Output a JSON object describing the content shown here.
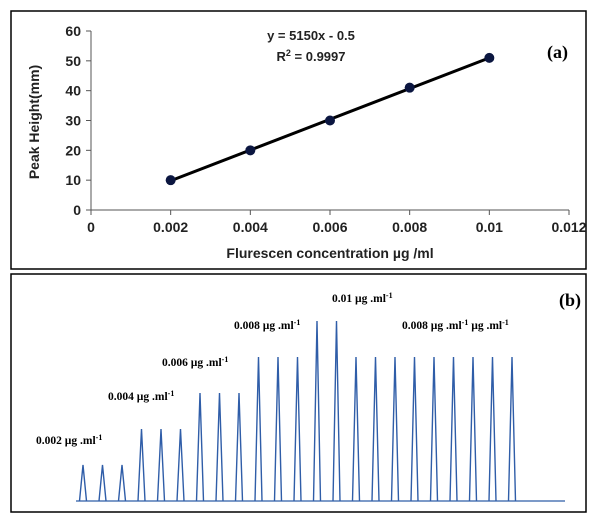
{
  "chart_data": [
    {
      "type": "scatter",
      "panel_label": "(a)",
      "xlabel": "Flurescen concentration µg /ml",
      "ylabel": "Peak Height(mm)",
      "xlim": [
        0,
        0.012
      ],
      "ylim": [
        0,
        60
      ],
      "x_ticks": [
        0,
        0.002,
        0.004,
        0.006,
        0.008,
        0.01,
        0.012
      ],
      "x_tick_labels": [
        "0",
        "0.002",
        "0.004",
        "0.006",
        "0.008",
        "0.01",
        "0.012"
      ],
      "y_ticks": [
        0,
        10,
        20,
        30,
        40,
        50,
        60
      ],
      "y_tick_labels": [
        "0",
        "10",
        "20",
        "30",
        "40",
        "50",
        "60"
      ],
      "x": [
        0.002,
        0.004,
        0.006,
        0.008,
        0.01
      ],
      "y": [
        10,
        20,
        30,
        41,
        51
      ],
      "trendline": {
        "slope": 5150,
        "intercept": -0.5
      },
      "equation": "y = 5150x - 0.5",
      "r_squared_label": "R",
      "r_squared_exp": "2",
      "r_squared_value": " = 0.9997",
      "grid": false,
      "marker_color": "#0b1640",
      "line_color": "#000000"
    },
    {
      "type": "line",
      "panel_label": "(b)",
      "unit_text": " µg .ml",
      "unit_sup": "-1",
      "line_color": "#2f5da8",
      "groups": [
        {
          "label": "0.002",
          "count": 3,
          "level": 0.002
        },
        {
          "label": "0.004",
          "count": 3,
          "level": 0.004
        },
        {
          "label": "0.006",
          "count": 3,
          "level": 0.006
        },
        {
          "label": "0.008",
          "count": 3,
          "level": 0.008
        },
        {
          "label": "0.01",
          "count": 2,
          "level": 0.01
        },
        {
          "label": "0.008",
          "count": 9,
          "level": 0.008,
          "extra_unit": true
        }
      ]
    }
  ]
}
